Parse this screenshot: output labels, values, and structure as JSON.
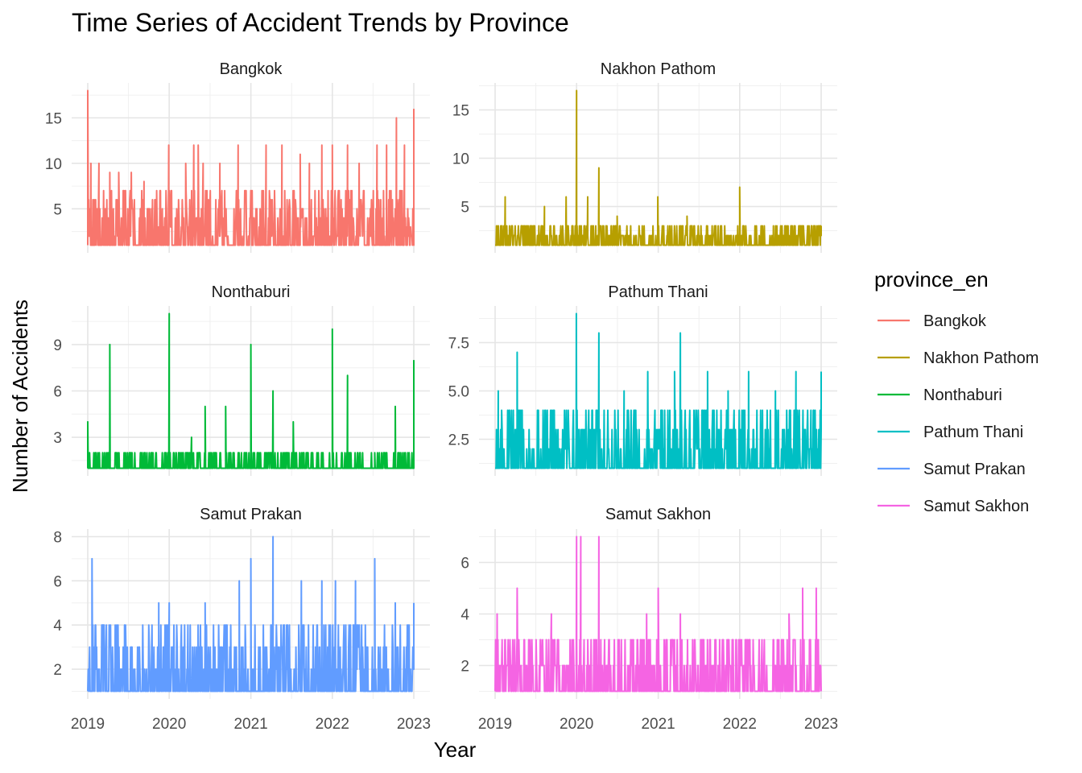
{
  "chart_data": {
    "type": "line",
    "title": "Time Series of Accident Trends by Province",
    "xlabel": "Year",
    "ylabel": "Number of Accidents",
    "legend_title": "province_en",
    "legend_position": "right",
    "grid": true,
    "x_ticks": [
      "2019",
      "2020",
      "2021",
      "2022",
      "2023"
    ],
    "xlim": [
      "2019-01-01",
      "2023-01-01"
    ],
    "panels": [
      {
        "name": "Bangkok",
        "color": "#F8766D",
        "ylim": [
          1,
          18
        ],
        "y_ticks": [
          5,
          10,
          15
        ],
        "y_tick_labels": [
          "5",
          "10",
          "15"
        ],
        "spikes": [
          [
            "2019-01-01",
            18
          ],
          [
            "2019-01-15",
            10
          ],
          [
            "2019-02-20",
            10
          ],
          [
            "2019-04-10",
            9
          ],
          [
            "2019-05-20",
            9
          ],
          [
            "2019-07-15",
            9
          ],
          [
            "2019-09-10",
            8
          ],
          [
            "2019-12-30",
            12
          ],
          [
            "2020-03-15",
            10
          ],
          [
            "2020-04-20",
            12
          ],
          [
            "2020-05-10",
            12
          ],
          [
            "2020-06-01",
            10
          ],
          [
            "2020-08-15",
            10
          ],
          [
            "2020-11-05",
            12
          ],
          [
            "2021-03-10",
            12
          ],
          [
            "2021-05-20",
            12
          ],
          [
            "2021-08-10",
            11
          ],
          [
            "2021-09-20",
            10
          ],
          [
            "2021-11-15",
            12
          ],
          [
            "2022-01-01",
            12
          ],
          [
            "2022-03-10",
            12
          ],
          [
            "2022-05-01",
            10
          ],
          [
            "2022-07-20",
            12
          ],
          [
            "2022-09-01",
            12
          ],
          [
            "2022-10-15",
            15
          ],
          [
            "2022-11-20",
            12
          ],
          [
            "2023-01-01",
            16
          ]
        ],
        "baseline": 1,
        "noise_high": 6
      },
      {
        "name": "Nakhon Pathom",
        "color": "#B79F00",
        "ylim": [
          1,
          17
        ],
        "y_ticks": [
          5,
          10,
          15
        ],
        "y_tick_labels": [
          "5",
          "10",
          "15"
        ],
        "spikes": [
          [
            "2019-02-15",
            6
          ],
          [
            "2019-08-10",
            5
          ],
          [
            "2019-11-15",
            6
          ],
          [
            "2020-01-01",
            17
          ],
          [
            "2020-02-20",
            6
          ],
          [
            "2020-04-10",
            9
          ],
          [
            "2020-07-01",
            4
          ],
          [
            "2020-12-30",
            6
          ],
          [
            "2021-05-10",
            4
          ],
          [
            "2022-01-01",
            7
          ],
          [
            "2022-06-01",
            3
          ],
          [
            "2023-01-01",
            3
          ]
        ],
        "baseline": 1,
        "noise_high": 2
      },
      {
        "name": "Nonthaburi",
        "color": "#00BA38",
        "ylim": [
          1,
          11
        ],
        "y_ticks": [
          3,
          6,
          9
        ],
        "y_tick_labels": [
          "3",
          "6",
          "9"
        ],
        "spikes": [
          [
            "2019-01-01",
            4
          ],
          [
            "2019-04-10",
            9
          ],
          [
            "2019-07-10",
            2
          ],
          [
            "2020-01-01",
            11
          ],
          [
            "2020-04-10",
            3
          ],
          [
            "2020-06-10",
            5
          ],
          [
            "2020-09-10",
            5
          ],
          [
            "2021-01-01",
            9
          ],
          [
            "2021-04-10",
            6
          ],
          [
            "2021-07-10",
            4
          ],
          [
            "2022-01-01",
            10
          ],
          [
            "2022-03-10",
            7
          ],
          [
            "2022-07-10",
            2
          ],
          [
            "2022-10-10",
            5
          ],
          [
            "2023-01-01",
            8
          ]
        ],
        "baseline": 1,
        "noise_high": 1
      },
      {
        "name": "Pathum Thani",
        "color": "#00BFC4",
        "ylim": [
          1,
          9
        ],
        "y_ticks": [
          2.5,
          5.0,
          7.5
        ],
        "y_tick_labels": [
          "2.5",
          "5.0",
          "7.5"
        ],
        "spikes": [
          [
            "2019-01-15",
            5
          ],
          [
            "2019-04-10",
            7
          ],
          [
            "2019-08-15",
            4
          ],
          [
            "2019-12-31",
            9
          ],
          [
            "2020-04-10",
            8
          ],
          [
            "2020-08-01",
            5
          ],
          [
            "2020-11-15",
            6
          ],
          [
            "2021-03-15",
            6
          ],
          [
            "2021-04-10",
            8
          ],
          [
            "2021-08-10",
            6
          ],
          [
            "2021-11-10",
            5
          ],
          [
            "2022-02-10",
            6
          ],
          [
            "2022-06-10",
            5
          ],
          [
            "2022-09-10",
            6
          ],
          [
            "2023-01-01",
            6
          ]
        ],
        "baseline": 1,
        "noise_high": 3
      },
      {
        "name": "Samut Prakan",
        "color": "#619CFF",
        "ylim": [
          1,
          8
        ],
        "y_ticks": [
          2,
          4,
          6,
          8
        ],
        "y_tick_labels": [
          "2",
          "4",
          "6",
          "8"
        ],
        "spikes": [
          [
            "2019-01-20",
            7
          ],
          [
            "2019-03-10",
            4
          ],
          [
            "2019-06-15",
            4
          ],
          [
            "2019-11-15",
            5
          ],
          [
            "2020-01-01",
            5
          ],
          [
            "2020-06-10",
            5
          ],
          [
            "2020-11-10",
            6
          ],
          [
            "2021-01-01",
            7
          ],
          [
            "2021-04-10",
            8
          ],
          [
            "2021-08-15",
            6
          ],
          [
            "2021-11-15",
            6
          ],
          [
            "2022-01-15",
            6
          ],
          [
            "2022-04-15",
            6
          ],
          [
            "2022-07-10",
            7
          ],
          [
            "2022-10-10",
            5
          ],
          [
            "2023-01-01",
            5
          ]
        ],
        "baseline": 1,
        "noise_high": 3
      },
      {
        "name": "Samut Sakhon",
        "color": "#F564E3",
        "ylim": [
          1,
          7
        ],
        "y_ticks": [
          2,
          4,
          6
        ],
        "y_tick_labels": [
          "2",
          "4",
          "6"
        ],
        "spikes": [
          [
            "2019-01-10",
            4
          ],
          [
            "2019-04-10",
            5
          ],
          [
            "2019-09-10",
            4
          ],
          [
            "2020-01-01",
            7
          ],
          [
            "2020-01-20",
            7
          ],
          [
            "2020-04-10",
            7
          ],
          [
            "2020-07-10",
            3
          ],
          [
            "2020-11-10",
            4
          ],
          [
            "2021-01-01",
            5
          ],
          [
            "2021-04-10",
            4
          ],
          [
            "2021-07-10",
            3
          ],
          [
            "2022-02-10",
            2
          ],
          [
            "2022-08-10",
            4
          ],
          [
            "2022-10-10",
            5
          ],
          [
            "2022-12-10",
            5
          ]
        ],
        "baseline": 1,
        "noise_high": 2
      }
    ]
  }
}
